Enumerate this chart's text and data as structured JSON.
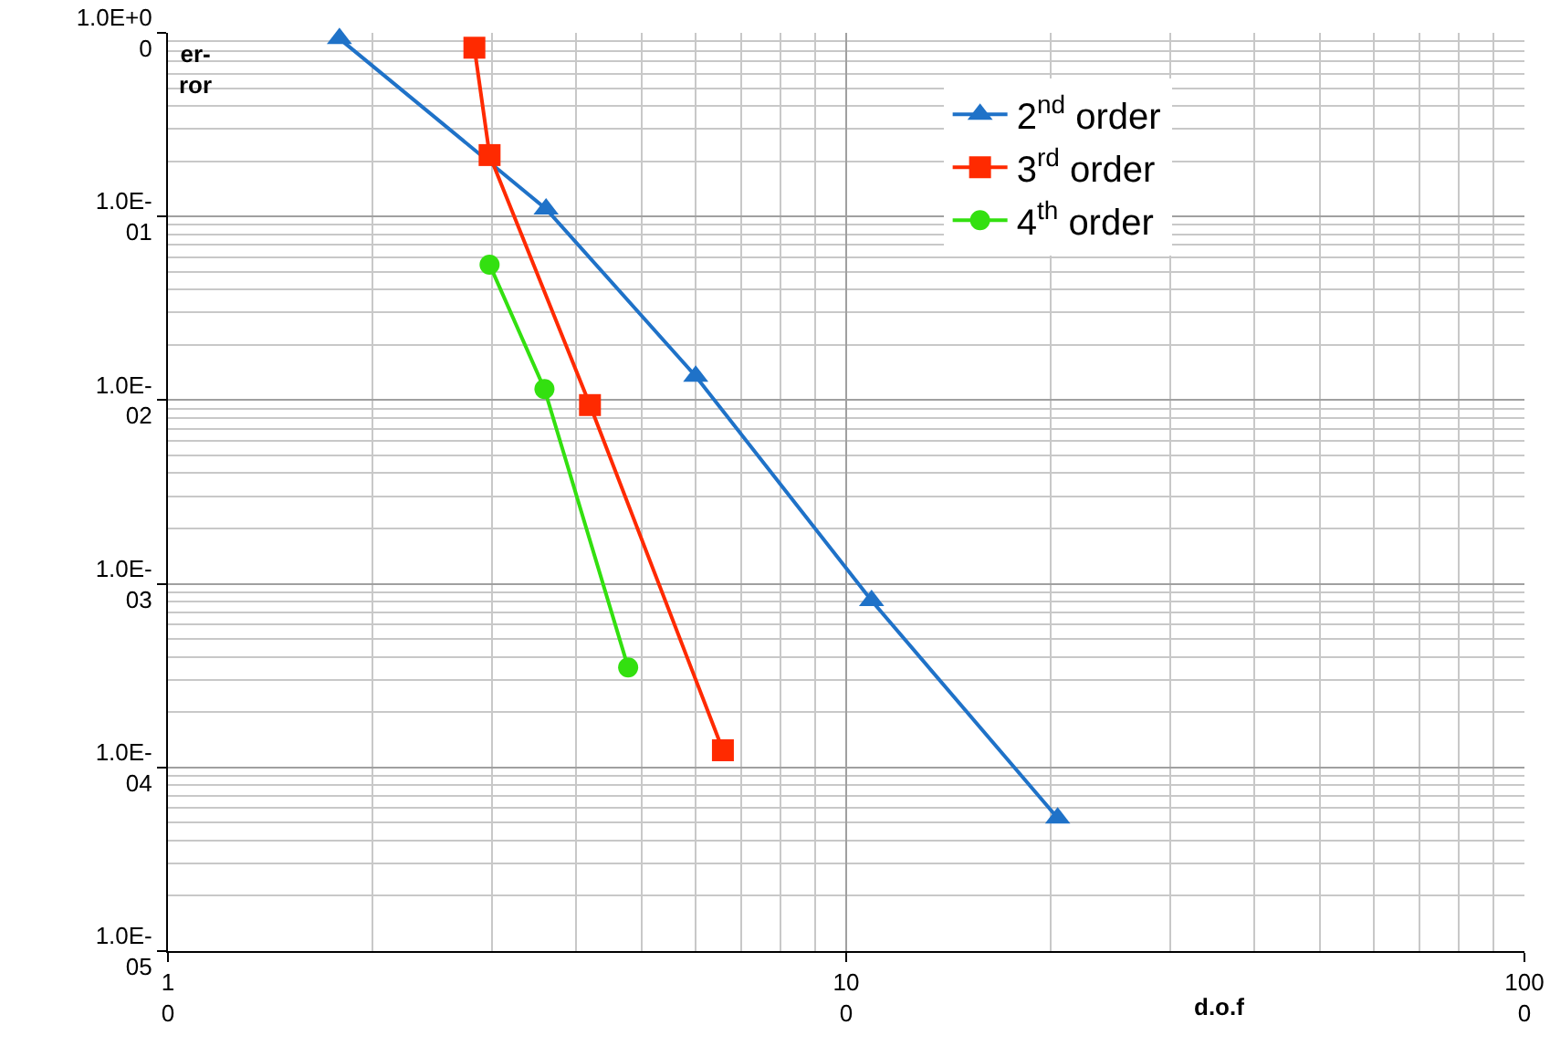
{
  "chart_data": {
    "type": "line",
    "xlabel": "d.o.f",
    "ylabel": "er-\nror",
    "log": "xy",
    "grid": true,
    "legend": "top right",
    "xlim": [
      10,
      1000
    ],
    "xticks": [
      10,
      100,
      1000
    ],
    "ylim": [
      1e-05,
      1
    ],
    "yticks": [
      {
        "value": 1,
        "label": "1.0E+00"
      },
      {
        "value": 0.1,
        "label": "1.0E-01"
      },
      {
        "value": 0.01,
        "label": "1.0E-02"
      },
      {
        "value": 0.001,
        "label": "1.0E-03"
      },
      {
        "value": 0.0001,
        "label": "1.0E-04"
      },
      {
        "value": 1e-05,
        "label": "1.0E-05"
      }
    ],
    "series": [
      {
        "name": "2$^{nd}$ order",
        "color": "#1f72c8",
        "marker": "triangle",
        "x": [
          17.9,
          36.1,
          60,
          109,
          205
        ],
        "values": [
          0.93,
          0.11,
          0.0135,
          0.00081,
          5.3e-05
        ]
      },
      {
        "name": "3$^{rd}$ order",
        "color": "#ff2a00",
        "marker": "square",
        "x": [
          28.3,
          29.8,
          41.9,
          65.8
        ],
        "values": [
          0.83,
          0.216,
          0.0094,
          0.000124
        ]
      },
      {
        "name": "4$^{th}$ order",
        "color": "#33e010",
        "marker": "circle",
        "x": [
          29.8,
          35.9,
          47.7
        ],
        "values": [
          0.0547,
          0.0115,
          0.00035
        ]
      }
    ]
  }
}
